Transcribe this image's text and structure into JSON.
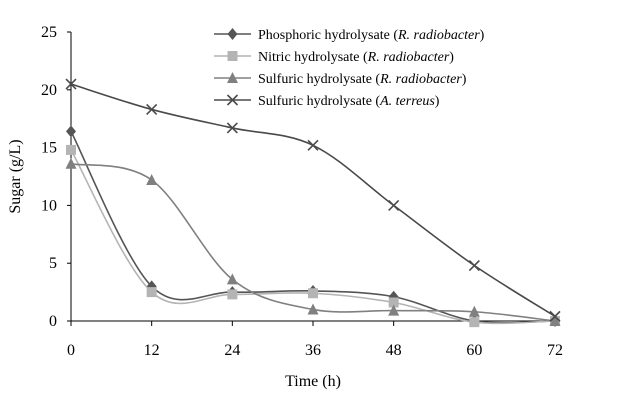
{
  "chart_data": {
    "type": "line",
    "title": "",
    "xlabel": "Time (h)",
    "ylabel": "Sugar (g/L)",
    "x": [
      0,
      12,
      24,
      36,
      48,
      60,
      72
    ],
    "xticks": [
      "0",
      "12",
      "24",
      "36",
      "48",
      "60",
      "72"
    ],
    "yticks": [
      "0",
      "5",
      "10",
      "15",
      "20",
      "25"
    ],
    "xlim": [
      0,
      72
    ],
    "ylim": [
      0,
      25
    ],
    "grid": false,
    "legend_position": "top-right",
    "series": [
      {
        "name_plain": "Phosphoric hydrolysate (",
        "name_italic": "R. radiobacter",
        "name_close": ")",
        "marker": "diamond",
        "color": "#555555",
        "values": [
          16.4,
          3.0,
          2.5,
          2.6,
          2.1,
          0.0,
          0.0
        ]
      },
      {
        "name_plain": "Nitric hydrolysate (",
        "name_italic": "R. radiobacter",
        "name_close": ")",
        "marker": "square",
        "color": "#b4b4b4",
        "values": [
          14.8,
          2.5,
          2.3,
          2.4,
          1.6,
          -0.1,
          0.0
        ]
      },
      {
        "name_plain": "Sulfuric hydrolysate (",
        "name_italic": "R. radiobacter",
        "name_close": ")",
        "marker": "triangle",
        "color": "#808080",
        "values": [
          13.6,
          12.2,
          3.6,
          1.0,
          0.9,
          0.8,
          0.0
        ]
      },
      {
        "name_plain": "Sulfuric hydrolysate (",
        "name_italic": "A. terreus",
        "name_close": ")",
        "marker": "x",
        "color": "#4a4a4a",
        "values": [
          20.5,
          18.3,
          16.7,
          15.2,
          10.0,
          4.8,
          0.4
        ]
      }
    ]
  }
}
